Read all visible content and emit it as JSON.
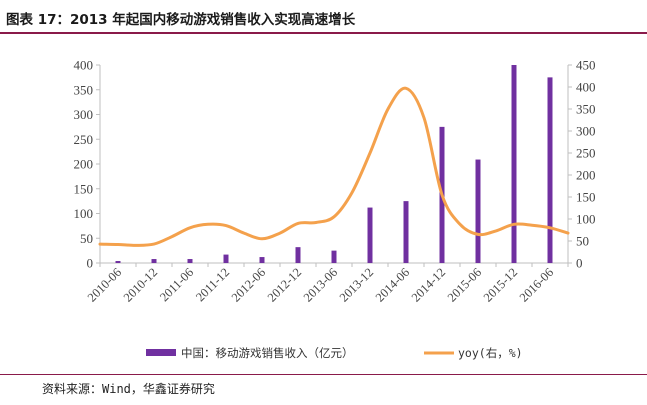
{
  "title": "图表 17：2013 年起国内移动游戏销售收入实现高速增长",
  "source": "资料来源：Wind，华鑫证券研究",
  "chart_data": {
    "type": "bar",
    "categories": [
      "2010-06",
      "2010-12",
      "2011-06",
      "2011-12",
      "2012-06",
      "2012-12",
      "2013-06",
      "2013-12",
      "2014-06",
      "2014-12",
      "2015-06",
      "2015-12",
      "2016-06"
    ],
    "ylim": [
      0,
      400
    ],
    "y_ticks": [
      0,
      50,
      100,
      150,
      200,
      250,
      300,
      350,
      400
    ],
    "y2lim": [
      0,
      450
    ],
    "y2_ticks": [
      0,
      50,
      100,
      150,
      200,
      250,
      300,
      350,
      400,
      450
    ],
    "bar_color": "#7030a0",
    "line_color": "#f4a14c",
    "series": [
      {
        "name": "中国：移动游戏销售收入（亿元）",
        "type": "bar",
        "axis": "left",
        "values": [
          4,
          8,
          8,
          17,
          12,
          32,
          25,
          112,
          125,
          275,
          209,
          400,
          375
        ]
      },
      {
        "name": "yoy(右，%)",
        "type": "line",
        "axis": "right",
        "points": [
          {
            "x": -0.5,
            "y": 43
          },
          {
            "x": 0,
            "y": 42
          },
          {
            "x": 0.5,
            "y": 40
          },
          {
            "x": 1,
            "y": 43
          },
          {
            "x": 1.5,
            "y": 60
          },
          {
            "x": 2,
            "y": 80
          },
          {
            "x": 2.5,
            "y": 88
          },
          {
            "x": 3,
            "y": 85
          },
          {
            "x": 3.5,
            "y": 68
          },
          {
            "x": 4,
            "y": 55
          },
          {
            "x": 4.5,
            "y": 68
          },
          {
            "x": 5,
            "y": 90
          },
          {
            "x": 5.5,
            "y": 92
          },
          {
            "x": 6,
            "y": 105
          },
          {
            "x": 6.5,
            "y": 160
          },
          {
            "x": 7,
            "y": 250
          },
          {
            "x": 7.5,
            "y": 350
          },
          {
            "x": 8,
            "y": 397
          },
          {
            "x": 8.5,
            "y": 330
          },
          {
            "x": 9,
            "y": 155
          },
          {
            "x": 9.5,
            "y": 88
          },
          {
            "x": 10,
            "y": 65
          },
          {
            "x": 10.5,
            "y": 73
          },
          {
            "x": 11,
            "y": 88
          },
          {
            "x": 11.5,
            "y": 86
          },
          {
            "x": 12,
            "y": 80
          },
          {
            "x": 12.5,
            "y": 68
          }
        ]
      }
    ],
    "grid": false,
    "legend_position": "bottom"
  }
}
